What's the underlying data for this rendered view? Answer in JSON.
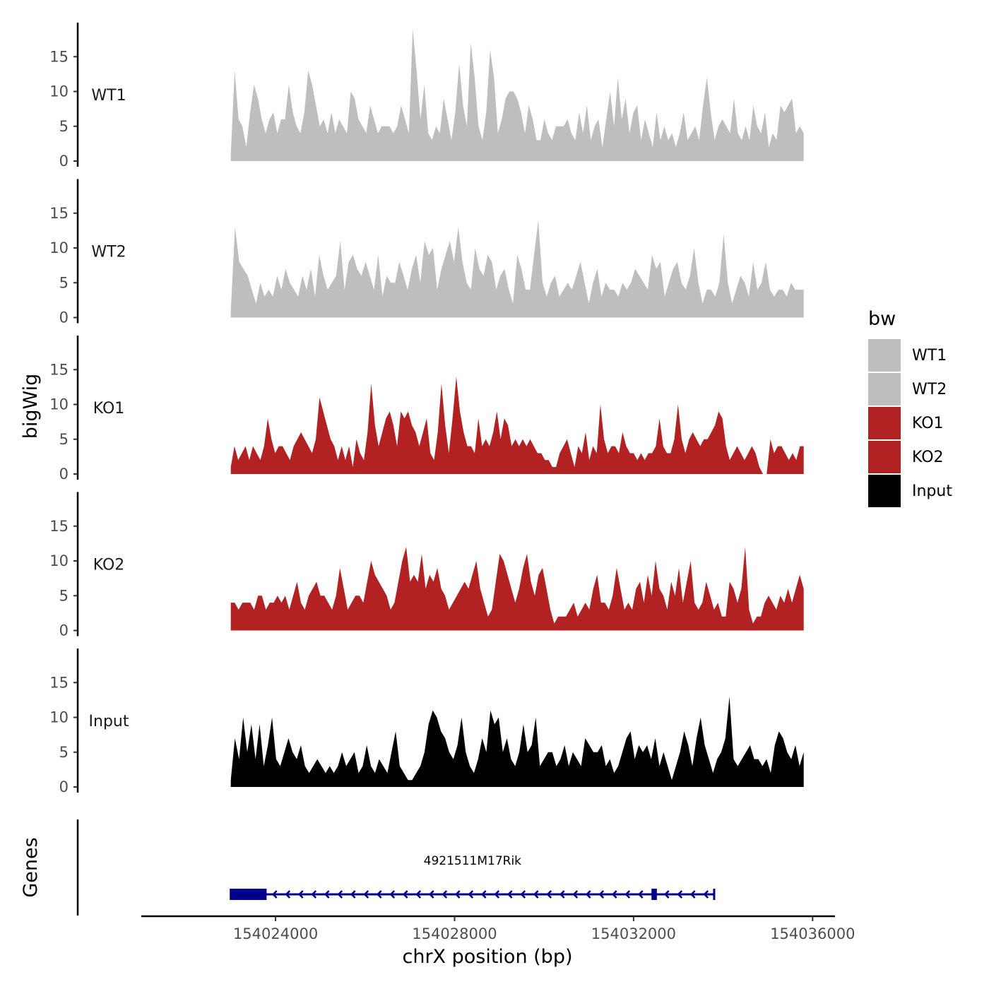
{
  "chart_data": {
    "type": "area",
    "xlabel": "chrX position (bp)",
    "ylabel": "bigWig",
    "genes_label": "Genes",
    "xlim": [
      154021000,
      154036500
    ],
    "ylim": [
      0,
      20
    ],
    "yticks": [
      0,
      5,
      10,
      15
    ],
    "xticks": [
      {
        "value": 154024000,
        "label": "154024000"
      },
      {
        "value": 154028000,
        "label": "154028000"
      },
      {
        "value": 154032000,
        "label": "154032000"
      },
      {
        "value": 154036000,
        "label": "154036000"
      }
    ],
    "legend": {
      "title": "bw",
      "entries": [
        {
          "label": "WT1",
          "color": "#bebebe"
        },
        {
          "label": "WT2",
          "color": "#bebebe"
        },
        {
          "label": "KO1",
          "color": "#b22222"
        },
        {
          "label": "KO2",
          "color": "#b22222"
        },
        {
          "label": "Input",
          "color": "#000000"
        }
      ]
    },
    "x_start": 154023000,
    "x_end": 154035800,
    "tracks": [
      {
        "name": "WT1",
        "color": "#bebebe",
        "values": [
          1,
          13,
          6,
          5,
          2,
          7,
          11,
          9,
          6,
          4,
          6,
          7,
          4,
          6,
          6,
          11,
          7,
          5,
          4,
          7,
          13,
          11,
          8,
          5,
          6,
          4,
          7,
          4,
          6,
          5,
          4,
          10,
          9,
          6,
          5,
          4,
          8,
          6,
          4,
          5,
          5,
          5,
          4,
          5,
          8,
          6,
          4,
          19,
          13,
          6,
          11,
          4,
          3,
          5,
          4,
          9,
          6,
          3,
          7,
          14,
          8,
          5,
          17,
          12,
          5,
          3,
          7,
          16,
          12,
          4,
          6,
          9,
          10,
          10,
          9,
          7,
          4,
          8,
          6,
          3,
          3,
          6,
          4,
          3,
          5,
          5,
          5,
          6,
          4,
          3,
          7,
          4,
          8,
          3,
          5,
          6,
          2,
          6,
          10,
          5,
          12,
          6,
          9,
          4,
          7,
          8,
          3,
          6,
          4,
          2,
          7,
          3,
          5,
          3,
          4,
          2,
          4,
          7,
          3,
          4,
          5,
          3,
          8,
          12,
          7,
          3,
          5,
          6,
          5,
          4,
          9,
          4,
          3,
          5,
          3,
          8,
          5,
          4,
          7,
          2,
          4,
          3,
          8,
          7,
          8,
          9,
          4,
          5,
          4
        ]
      },
      {
        "name": "WT2",
        "color": "#bebebe",
        "values": [
          1,
          13,
          8,
          7,
          6,
          4,
          2,
          5,
          3,
          4,
          3,
          6,
          4,
          7,
          5,
          4,
          3,
          6,
          4,
          7,
          3,
          9,
          6,
          4,
          5,
          6,
          11,
          4,
          8,
          9,
          7,
          6,
          8,
          6,
          4,
          9,
          3,
          6,
          5,
          5,
          8,
          6,
          4,
          7,
          9,
          5,
          11,
          9,
          10,
          4,
          7,
          9,
          11,
          8,
          13,
          8,
          5,
          4,
          10,
          7,
          6,
          9,
          8,
          4,
          6,
          7,
          4,
          2,
          9,
          7,
          4,
          4,
          9,
          14,
          5,
          3,
          5,
          6,
          3,
          4,
          5,
          4,
          6,
          8,
          5,
          2,
          5,
          7,
          3,
          5,
          4,
          4,
          3,
          5,
          4,
          5,
          7,
          6,
          5,
          4,
          9,
          7,
          8,
          3,
          5,
          7,
          8,
          5,
          4,
          6,
          10,
          5,
          2,
          4,
          4,
          3,
          5,
          12,
          5,
          2,
          4,
          6,
          5,
          3,
          8,
          4,
          5,
          8,
          4,
          3,
          4,
          4,
          3,
          5,
          4,
          4,
          4
        ]
      },
      {
        "name": "KO1",
        "color": "#b22222",
        "values": [
          1,
          4,
          2,
          3,
          4,
          2,
          4,
          3,
          2,
          4,
          8,
          5,
          3,
          4,
          4,
          3,
          2,
          4,
          5,
          6,
          5,
          4,
          3,
          5,
          11,
          9,
          7,
          5,
          4,
          2,
          4,
          2,
          4,
          1,
          5,
          3,
          2,
          6,
          13,
          7,
          4,
          6,
          8,
          9,
          7,
          4,
          9,
          8,
          9,
          7,
          6,
          4,
          6,
          8,
          3,
          2,
          6,
          13,
          7,
          3,
          8,
          14,
          9,
          6,
          4,
          4,
          3,
          8,
          4,
          5,
          4,
          6,
          9,
          5,
          8,
          7,
          4,
          5,
          4,
          5,
          4,
          5,
          4,
          3,
          3,
          2,
          2,
          1,
          1,
          3,
          4,
          5,
          3,
          1,
          4,
          3,
          6,
          2,
          4,
          3,
          10,
          5,
          3,
          4,
          4,
          3,
          6,
          4,
          3,
          3,
          2,
          3,
          2,
          3,
          3,
          4,
          8,
          4,
          3,
          3,
          5,
          10,
          5,
          3,
          5,
          6,
          5,
          4,
          5,
          5,
          6,
          7,
          9,
          8,
          4,
          2,
          3,
          4,
          3,
          2,
          3,
          4,
          3,
          1,
          0,
          0,
          5,
          3,
          4,
          4,
          3,
          2,
          3,
          2,
          4,
          4
        ]
      },
      {
        "name": "KO2",
        "color": "#b22222",
        "values": [
          4,
          4,
          3,
          4,
          4,
          4,
          3,
          5,
          5,
          3,
          4,
          4,
          5,
          4,
          5,
          3,
          5,
          7,
          4,
          3,
          5,
          6,
          7,
          5,
          5,
          4,
          3,
          5,
          9,
          6,
          3,
          4,
          5,
          5,
          4,
          7,
          10,
          8,
          7,
          6,
          5,
          3,
          4,
          7,
          10,
          12,
          7,
          8,
          7,
          11,
          6,
          8,
          7,
          9,
          6,
          5,
          3,
          4,
          5,
          6,
          7,
          6,
          8,
          10,
          6,
          4,
          2,
          3,
          7,
          11,
          10,
          8,
          6,
          4,
          6,
          9,
          11,
          7,
          5,
          8,
          9,
          6,
          3,
          1,
          2,
          2,
          2,
          3,
          4,
          2,
          3,
          4,
          3,
          6,
          8,
          4,
          4,
          3,
          5,
          9,
          6,
          3,
          4,
          3,
          6,
          7,
          4,
          8,
          5,
          10,
          6,
          5,
          3,
          7,
          5,
          9,
          4,
          7,
          10,
          4,
          3,
          4,
          7,
          5,
          3,
          4,
          2,
          2,
          7,
          6,
          4,
          6,
          12,
          3,
          1,
          2,
          2,
          4,
          5,
          4,
          3,
          5,
          4,
          6,
          4,
          6,
          8,
          6
        ]
      },
      {
        "name": "Input",
        "color": "#000000",
        "values": [
          1,
          7,
          4,
          10,
          5,
          9,
          4,
          9,
          3,
          6,
          10,
          4,
          3,
          5,
          7,
          5,
          4,
          6,
          3,
          2,
          3,
          4,
          3,
          2,
          3,
          2,
          3,
          5,
          3,
          4,
          5,
          2,
          3,
          6,
          3,
          2,
          4,
          3,
          2,
          5,
          8,
          3,
          2,
          1,
          1,
          2,
          3,
          5,
          9,
          11,
          10,
          8,
          7,
          5,
          4,
          6,
          10,
          5,
          3,
          2,
          4,
          7,
          5,
          11,
          9,
          10,
          5,
          7,
          4,
          3,
          5,
          9,
          5,
          6,
          10,
          3,
          4,
          5,
          5,
          3,
          4,
          6,
          3,
          5,
          4,
          3,
          7,
          6,
          5,
          5,
          6,
          3,
          4,
          2,
          3,
          5,
          7,
          8,
          4,
          6,
          5,
          6,
          4,
          7,
          3,
          5,
          3,
          1,
          3,
          5,
          8,
          6,
          3,
          7,
          10,
          6,
          4,
          2,
          4,
          5,
          7,
          13,
          4,
          3,
          4,
          5,
          6,
          4,
          4,
          3,
          4,
          2,
          6,
          8,
          7,
          5,
          4,
          6,
          3,
          5
        ]
      }
    ],
    "gene": {
      "name": "4921511M17Rik",
      "strand": "-",
      "start": 154023000,
      "end": 154033800,
      "exons": [
        {
          "start": 154023000,
          "end": 154023800
        },
        {
          "start": 154032400,
          "end": 154032520
        }
      ],
      "color": "#00008b"
    }
  }
}
